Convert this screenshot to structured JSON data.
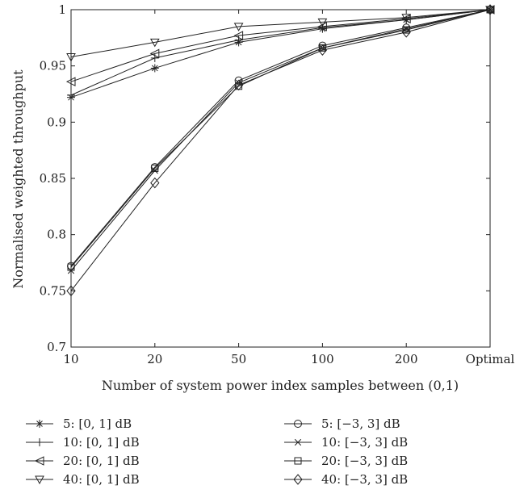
{
  "chart_data": {
    "type": "line",
    "xlabel": "Number of system power index samples between (0,1)",
    "ylabel": "Normalised weighted throughput",
    "categories": [
      "10",
      "20",
      "50",
      "100",
      "200",
      "Optimal"
    ],
    "ylim": [
      0.7,
      1.0
    ],
    "yticks": [
      "0.7",
      "0.75",
      "0.8",
      "0.85",
      "0.9",
      "0.95",
      "1"
    ],
    "grid": false,
    "legend_position": "bottom",
    "series": [
      {
        "name": "5: [0, 1] dB",
        "marker": "asterisk",
        "values": [
          0.922,
          0.948,
          0.971,
          0.983,
          0.991,
          1.0
        ]
      },
      {
        "name": "10: [0, 1] dB",
        "marker": "plus",
        "values": [
          0.924,
          0.957,
          0.973,
          0.984,
          0.991,
          1.0
        ]
      },
      {
        "name": "20: [0, 1] dB",
        "marker": "triangle-left",
        "values": [
          0.936,
          0.961,
          0.977,
          0.985,
          0.992,
          1.0
        ]
      },
      {
        "name": "40: [0, 1] dB",
        "marker": "triangle-down",
        "values": [
          0.958,
          0.971,
          0.985,
          0.989,
          0.993,
          1.0
        ]
      },
      {
        "name": "5: [−3, 3] dB",
        "marker": "circle",
        "values": [
          0.772,
          0.86,
          0.937,
          0.968,
          0.984,
          1.0
        ]
      },
      {
        "name": "10: [−3, 3] dB",
        "marker": "x",
        "values": [
          0.768,
          0.857,
          0.935,
          0.966,
          0.983,
          1.0
        ]
      },
      {
        "name": "20: [−3, 3] dB",
        "marker": "square",
        "values": [
          0.771,
          0.859,
          0.932,
          0.966,
          0.982,
          1.0
        ]
      },
      {
        "name": "40: [−3, 3] dB",
        "marker": "diamond",
        "values": [
          0.75,
          0.846,
          0.933,
          0.964,
          0.98,
          1.0
        ]
      }
    ]
  }
}
